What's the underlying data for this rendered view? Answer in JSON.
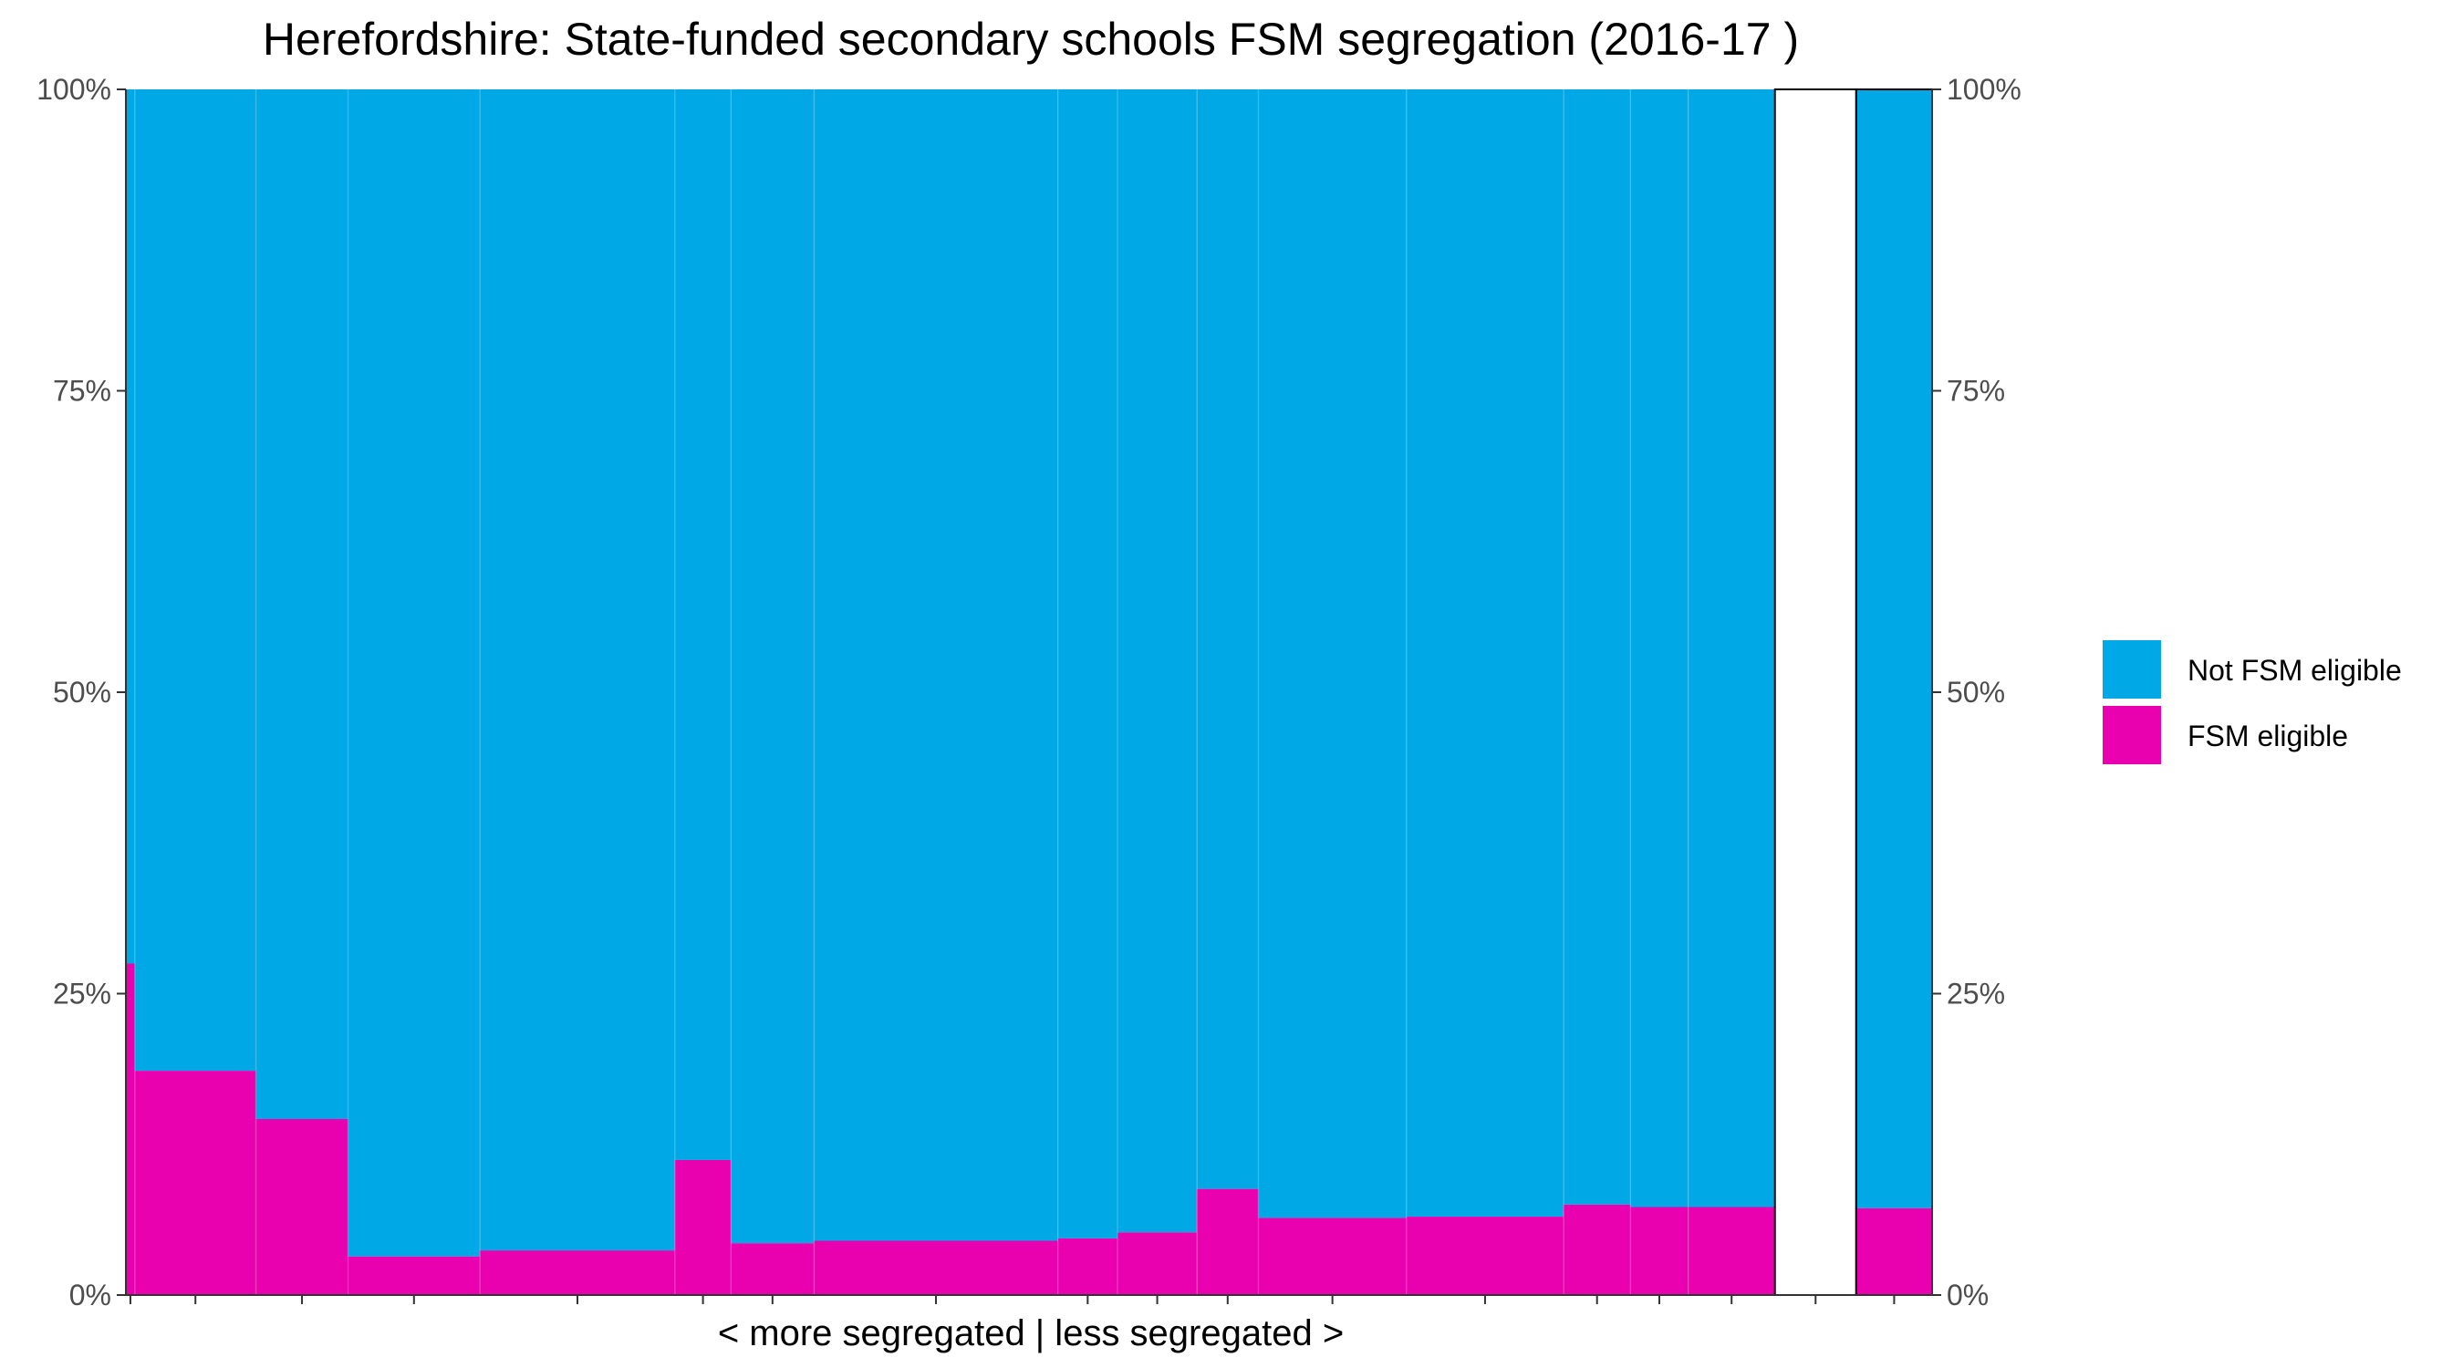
{
  "chart_data": {
    "type": "bar",
    "title": "Herefordshire: State-funded secondary schools FSM segregation (2016-17 )",
    "xlabel": "< more segregated | less segregated >",
    "ylabel": "",
    "ylim": [
      0,
      1
    ],
    "y_ticks": [
      "0%",
      "25%",
      "50%",
      "75%",
      "100%"
    ],
    "y_tick_values": [
      0,
      0.25,
      0.5,
      0.75,
      1
    ],
    "secondary_y_axis": true,
    "grid": false,
    "legend_position": "right",
    "legend": [
      {
        "name": "Not FSM eligible",
        "color": "#00A8E6"
      },
      {
        "name": "FSM eligible",
        "color": "#E900AF"
      }
    ],
    "x_extent": [
      0,
      100
    ],
    "schools": [
      {
        "x_start": 0.0,
        "x_end": 0.5,
        "fsm_share": 0.275
      },
      {
        "x_start": 0.5,
        "x_end": 7.2,
        "fsm_share": 0.186
      },
      {
        "x_start": 7.2,
        "x_end": 12.3,
        "fsm_share": 0.146
      },
      {
        "x_start": 12.3,
        "x_end": 19.6,
        "fsm_share": 0.032
      },
      {
        "x_start": 19.6,
        "x_end": 30.4,
        "fsm_share": 0.037
      },
      {
        "x_start": 30.4,
        "x_end": 33.5,
        "fsm_share": 0.112
      },
      {
        "x_start": 33.5,
        "x_end": 38.1,
        "fsm_share": 0.043
      },
      {
        "x_start": 38.1,
        "x_end": 51.6,
        "fsm_share": 0.045
      },
      {
        "x_start": 51.6,
        "x_end": 54.9,
        "fsm_share": 0.047
      },
      {
        "x_start": 54.9,
        "x_end": 59.3,
        "fsm_share": 0.052
      },
      {
        "x_start": 59.3,
        "x_end": 62.7,
        "fsm_share": 0.088
      },
      {
        "x_start": 62.7,
        "x_end": 70.9,
        "fsm_share": 0.064
      },
      {
        "x_start": 70.9,
        "x_end": 79.6,
        "fsm_share": 0.065
      },
      {
        "x_start": 79.6,
        "x_end": 83.3,
        "fsm_share": 0.075
      },
      {
        "x_start": 83.3,
        "x_end": 86.5,
        "fsm_share": 0.073
      },
      {
        "x_start": 86.5,
        "x_end": 91.3,
        "fsm_share": 0.073
      }
    ],
    "empty_column": {
      "x_start": 91.3,
      "x_end": 95.8
    },
    "overall_column": {
      "x_start": 95.8,
      "x_end": 100,
      "fsm_share": 0.072
    }
  }
}
